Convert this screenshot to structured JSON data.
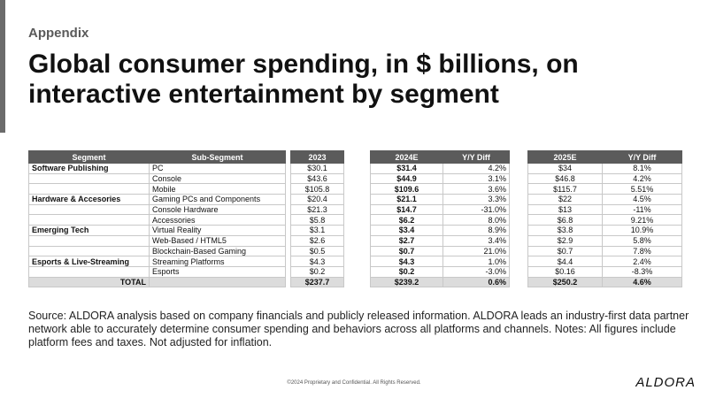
{
  "header": {
    "eyebrow": "Appendix",
    "title": "Global consumer spending, in $ billions, on interactive entertainment by segment"
  },
  "table": {
    "headers": {
      "segment": "Segment",
      "sub_segment": "Sub-Segment",
      "y2023": "2023",
      "y2024": "2024E",
      "diff2024": "Y/Y Diff",
      "y2025": "2025E",
      "diff2025": "Y/Y Diff"
    },
    "segments": [
      {
        "name": "Software Publishing",
        "rows": [
          {
            "sub_segment": "PC",
            "y2023": "$30.1",
            "y2024": "$31.4",
            "diff2024": "4.2%",
            "y2025": "$34",
            "diff2025": "8.1%"
          },
          {
            "sub_segment": "Console",
            "y2023": "$43.6",
            "y2024": "$44.9",
            "diff2024": "3.1%",
            "y2025": "$46.8",
            "diff2025": "4.2%"
          },
          {
            "sub_segment": "Mobile",
            "y2023": "$105.8",
            "y2024": "$109.6",
            "diff2024": "3.6%",
            "y2025": "$115.7",
            "diff2025": "5.51%"
          }
        ]
      },
      {
        "name": "Hardware & Accesories",
        "rows": [
          {
            "sub_segment": "Gaming PCs and Components",
            "y2023": "$20.4",
            "y2024": "$21.1",
            "diff2024": "3.3%",
            "y2025": "$22",
            "diff2025": "4.5%"
          },
          {
            "sub_segment": "Console Hardware",
            "y2023": "$21.3",
            "y2024": "$14.7",
            "diff2024": "-31.0%",
            "y2025": "$13",
            "diff2025": "-11%"
          },
          {
            "sub_segment": "Accessories",
            "y2023": "$5.8",
            "y2024": "$6.2",
            "diff2024": "8.0%",
            "y2025": "$6.8",
            "diff2025": "9.21%"
          }
        ]
      },
      {
        "name": "Emerging Tech",
        "rows": [
          {
            "sub_segment": "Virtual Reality",
            "y2023": "$3.1",
            "y2024": "$3.4",
            "diff2024": "8.9%",
            "y2025": "$3.8",
            "diff2025": "10.9%"
          },
          {
            "sub_segment": "Web-Based / HTML5",
            "y2023": "$2.6",
            "y2024": "$2.7",
            "diff2024": "3.4%",
            "y2025": "$2.9",
            "diff2025": "5.8%"
          },
          {
            "sub_segment": "Blockchain-Based Gaming",
            "y2023": "$0.5",
            "y2024": "$0.7",
            "diff2024": "21.0%",
            "y2025": "$0.7",
            "diff2025": "7.8%"
          }
        ]
      },
      {
        "name": "Esports & Live-Streaming",
        "rows": [
          {
            "sub_segment": "Streaming Platforms",
            "y2023": "$4.3",
            "y2024": "$4.3",
            "diff2024": "1.0%",
            "y2025": "$4.4",
            "diff2025": "2.4%"
          },
          {
            "sub_segment": "Esports",
            "y2023": "$0.2",
            "y2024": "$0.2",
            "diff2024": "-3.0%",
            "y2025": "$0.16",
            "diff2025": "-8.3%"
          }
        ]
      }
    ],
    "total": {
      "label": "TOTAL",
      "y2023": "$237.7",
      "y2024": "$239.2",
      "diff2024": "0.6%",
      "y2025": "$250.2",
      "diff2025": "4.6%"
    }
  },
  "source": "Source: ALDORA analysis based on company financials and publicly released information. ALDORA leads an industry-first data partner network able to accurately determine consumer spending and behaviors across all platforms and channels. Notes: All figures include platform fees and taxes. Not adjusted for inflation.",
  "footer": {
    "copyright": "©2024 Proprietary and Confidential. All Rights Reserved.",
    "logo": "ALDORA"
  }
}
